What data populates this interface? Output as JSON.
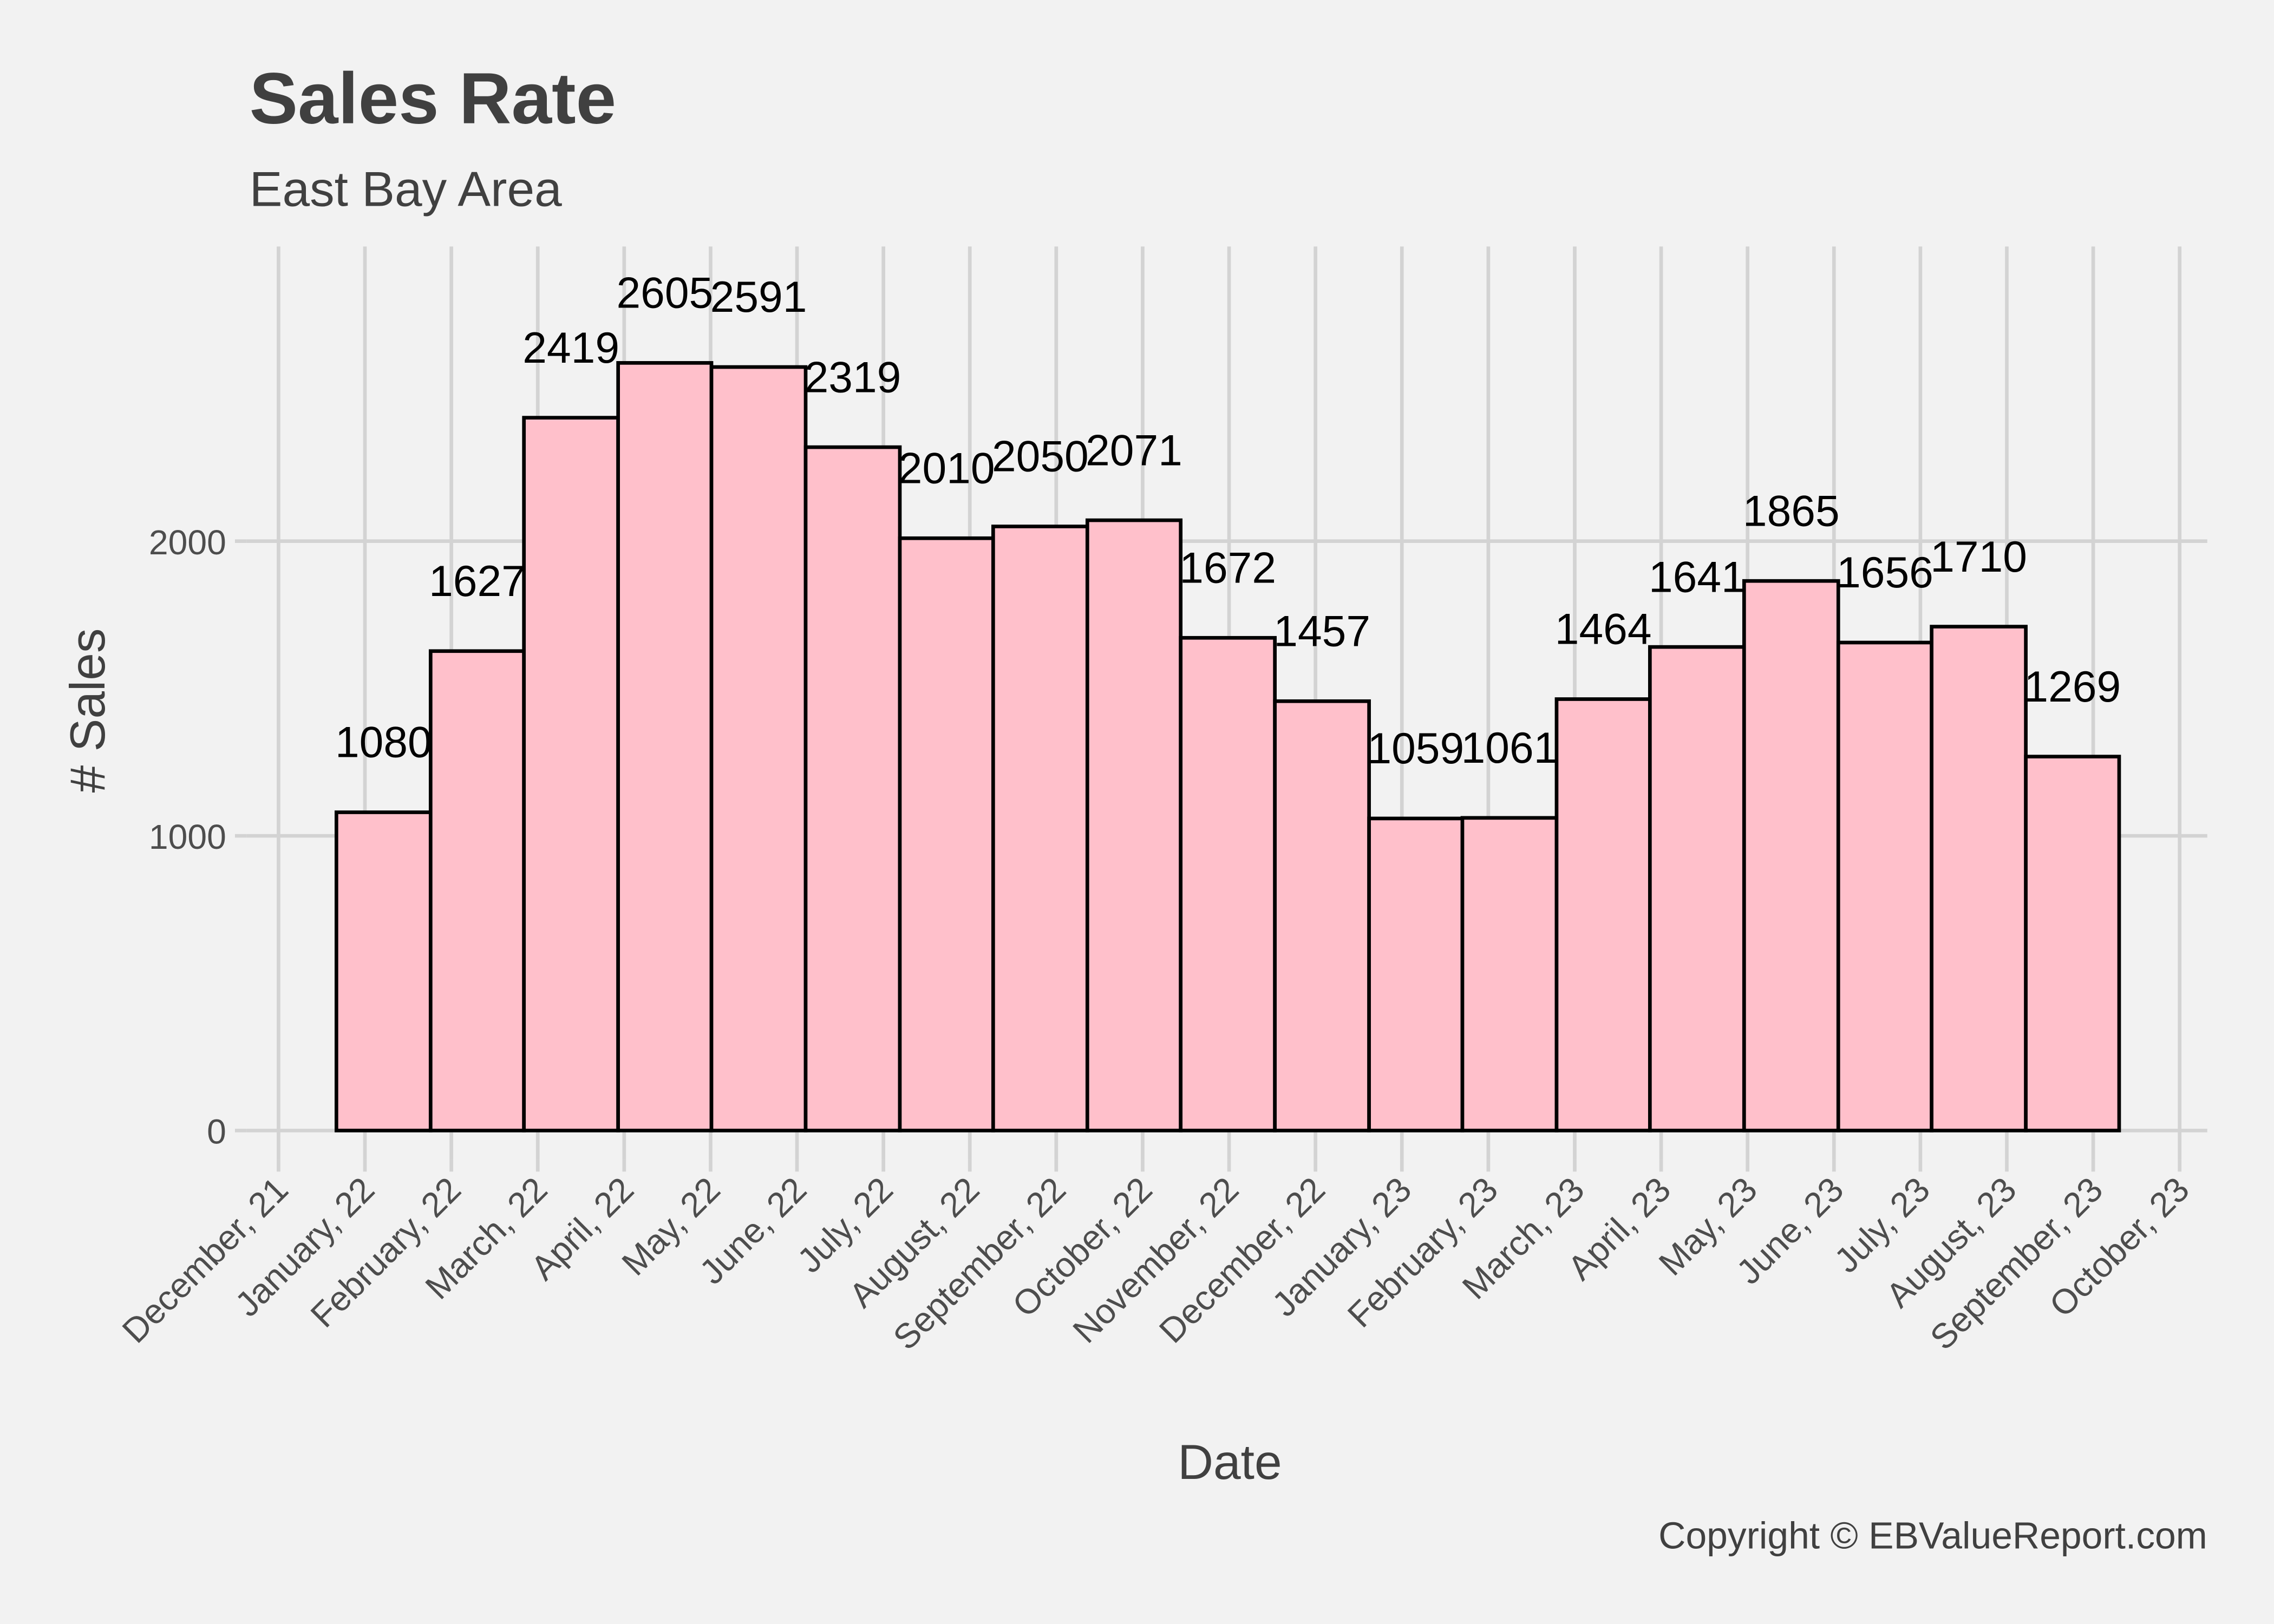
{
  "chart_data": {
    "type": "histogram",
    "title": "Sales Rate",
    "subtitle": "East Bay Area",
    "x_label": "Date",
    "y_label": "# Sales",
    "caption": "Copyright  © EBValueReport.com",
    "bins": [
      0.67,
      1.76,
      2.84,
      3.93,
      5.01,
      6.1,
      7.19,
      8.27,
      9.36,
      10.44,
      11.53,
      12.62,
      13.7,
      14.79,
      15.87,
      16.96,
      18.05,
      19.13,
      20.22,
      21.3
    ],
    "values": [
      1080,
      1627,
      2419,
      2605,
      2591,
      2319,
      2010,
      2050,
      2071,
      1672,
      1457,
      1059,
      1061,
      1464,
      1641,
      1865,
      1656,
      1710,
      1269
    ],
    "color": "#ffc0cb",
    "edge_color": "#000000",
    "xlim": [
      -0.37,
      22.32
    ],
    "xticks": [
      {
        "value": 0,
        "label": "December, 21"
      },
      {
        "value": 1,
        "label": "January, 22"
      },
      {
        "value": 2,
        "label": "February, 22"
      },
      {
        "value": 3,
        "label": "March, 22"
      },
      {
        "value": 4,
        "label": "April, 22"
      },
      {
        "value": 5,
        "label": "May, 22"
      },
      {
        "value": 6,
        "label": "June, 22"
      },
      {
        "value": 7,
        "label": "July, 22"
      },
      {
        "value": 8,
        "label": "August, 22"
      },
      {
        "value": 9,
        "label": "September, 22"
      },
      {
        "value": 10,
        "label": "October, 22"
      },
      {
        "value": 11,
        "label": "November, 22"
      },
      {
        "value": 12,
        "label": "December, 22"
      },
      {
        "value": 13,
        "label": "January, 23"
      },
      {
        "value": 14,
        "label": "February, 23"
      },
      {
        "value": 15,
        "label": "March, 23"
      },
      {
        "value": 16,
        "label": "April, 23"
      },
      {
        "value": 17,
        "label": "May, 23"
      },
      {
        "value": 18,
        "label": "June, 23"
      },
      {
        "value": 19,
        "label": "July, 23"
      },
      {
        "value": 20,
        "label": "August, 23"
      },
      {
        "value": 21,
        "label": "September, 23"
      },
      {
        "value": 22,
        "label": "October, 23"
      }
    ],
    "ylim": [
      -100,
      3000
    ],
    "yticks": [
      0,
      1000,
      2000
    ],
    "grid": true
  }
}
